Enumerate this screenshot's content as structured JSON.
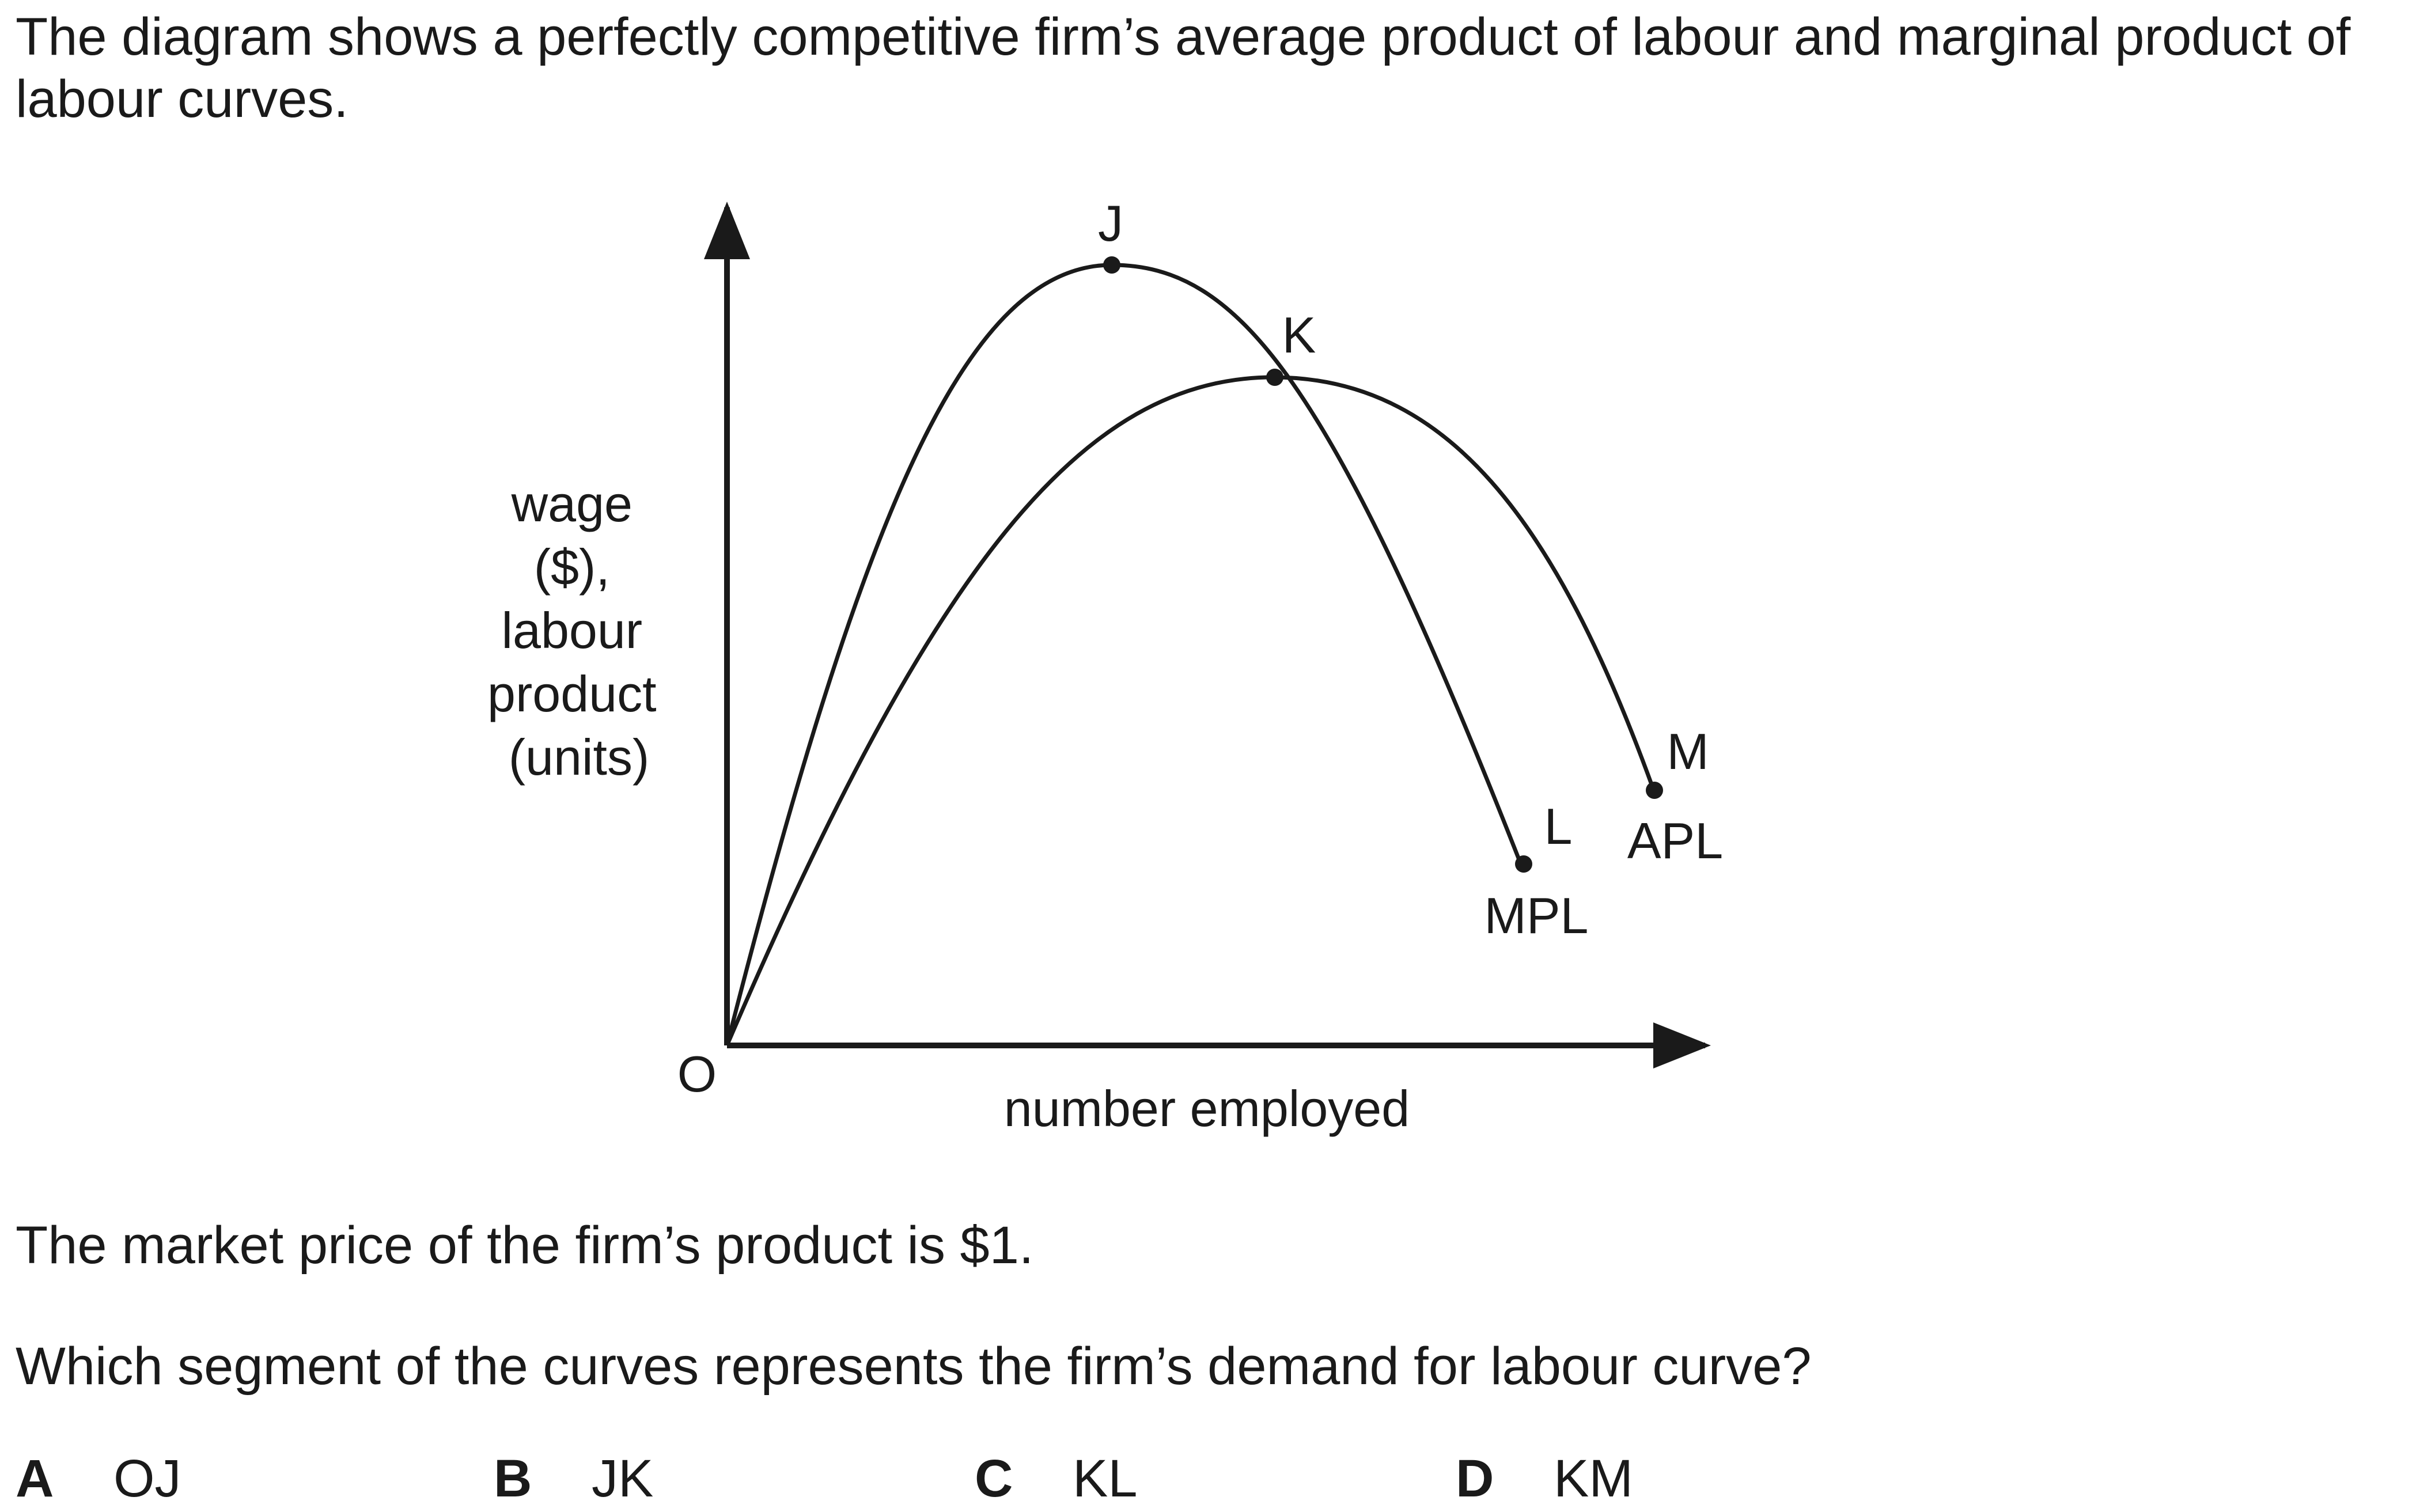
{
  "question": {
    "intro": "The diagram shows a perfectly competitive firm’s average product of labour and marginal product of labour curves.",
    "price_statement": "The market price of the firm’s product is $1.",
    "prompt": "Which segment of the curves represents the firm’s demand for labour curve?"
  },
  "diagram": {
    "y_axis_label": [
      "wage",
      "($),",
      "labour",
      "product",
      "(units)"
    ],
    "x_axis_label": "number employed",
    "origin_label": "O",
    "points": {
      "J": "J",
      "K": "K",
      "L": "L",
      "M": "M"
    },
    "curves": {
      "mpl": "MPL",
      "apl": "APL"
    }
  },
  "options": [
    {
      "letter": "A",
      "text": "OJ"
    },
    {
      "letter": "B",
      "text": "JK"
    },
    {
      "letter": "C",
      "text": "KL"
    },
    {
      "letter": "D",
      "text": "KM"
    }
  ]
}
